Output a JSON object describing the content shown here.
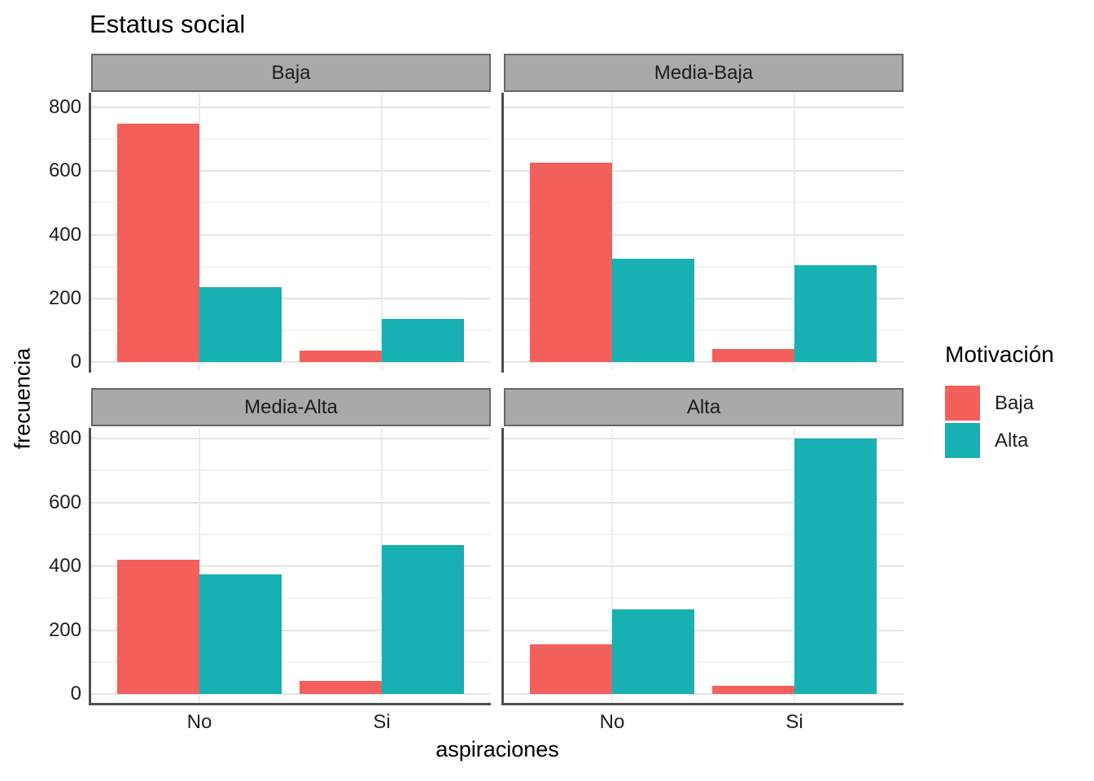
{
  "chart_data": {
    "type": "bar",
    "title": "Estatus social",
    "xlabel": "aspiraciones",
    "ylabel": "frecuencia",
    "legend": {
      "title": "Motivación",
      "position": "right",
      "entries": [
        "Baja",
        "Alta"
      ]
    },
    "categories": [
      "No",
      "Si"
    ],
    "series_names": [
      "Baja",
      "Alta"
    ],
    "colors": {
      "Baja": "#F3605B",
      "Alta": "#17B0B3",
      "strip_fill": "#A9A9A9"
    },
    "ylim": [
      0,
      800
    ],
    "yticks": [
      0,
      200,
      400,
      600,
      800
    ],
    "yticks_minor": [
      100,
      300,
      500,
      700
    ],
    "grid": true,
    "facets": [
      {
        "label": "Baja",
        "series": [
          {
            "name": "Baja",
            "values": [
              750,
              35
            ]
          },
          {
            "name": "Alta",
            "values": [
              235,
              135
            ]
          }
        ]
      },
      {
        "label": "Media-Baja",
        "series": [
          {
            "name": "Baja",
            "values": [
              625,
              40
            ]
          },
          {
            "name": "Alta",
            "values": [
              325,
              305
            ]
          }
        ]
      },
      {
        "label": "Media-Alta",
        "series": [
          {
            "name": "Baja",
            "values": [
              420,
              40
            ]
          },
          {
            "name": "Alta",
            "values": [
              375,
              465
            ]
          }
        ]
      },
      {
        "label": "Alta",
        "series": [
          {
            "name": "Baja",
            "values": [
              155,
              25
            ]
          },
          {
            "name": "Alta",
            "values": [
              265,
              800
            ]
          }
        ]
      }
    ]
  }
}
